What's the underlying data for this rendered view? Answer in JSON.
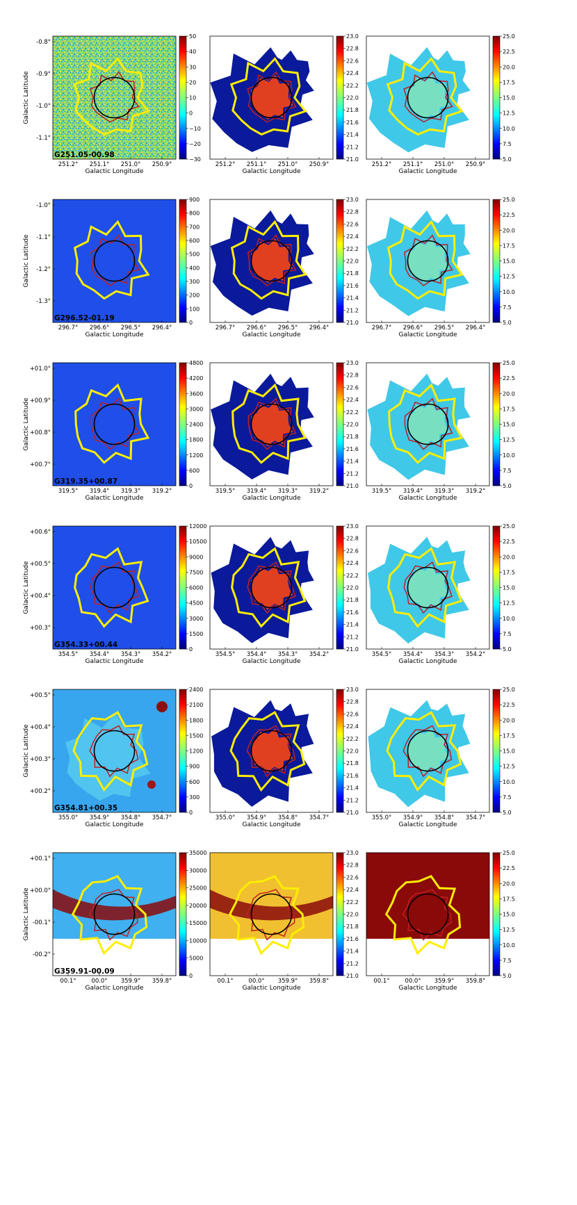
{
  "figure": {
    "background": "#ffffff"
  },
  "common": {
    "xlabel": "Galactic Longitude",
    "ylabel": "Galactic Latitude",
    "column_colorbars": [
      null,
      {
        "ticks": [
          "23.0",
          "22.8",
          "22.6",
          "22.4",
          "22.2",
          "22.0",
          "21.8",
          "21.6",
          "21.4",
          "21.2",
          "21.0"
        ]
      },
      {
        "ticks": [
          "25.0",
          "22.5",
          "20.0",
          "17.5",
          "15.0",
          "12.5",
          "10.0",
          "7.5",
          "5.0"
        ]
      }
    ]
  },
  "chart_data": [
    {
      "type": "heatmap",
      "label": "G251.05-00.98",
      "xticks": [
        "251.2°",
        "251.1°",
        "251.0°",
        "250.9°"
      ],
      "yticks": [
        "-0.8°",
        "-0.9°",
        "-1.0°",
        "-1.1°"
      ],
      "colorbar1_ticks": [
        "50",
        "40",
        "30",
        "20",
        "10",
        "0",
        "−10",
        "−20",
        "−30"
      ],
      "maps": [
        "noise",
        "blob",
        "blob"
      ]
    },
    {
      "type": "heatmap",
      "label": "G296.52-01.19",
      "xticks": [
        "296.7°",
        "296.6°",
        "296.5°",
        "296.4°"
      ],
      "yticks": [
        "-1.0°",
        "-1.1°",
        "-1.2°",
        "-1.3°"
      ],
      "colorbar1_ticks": [
        "900",
        "800",
        "700",
        "600",
        "500",
        "400",
        "300",
        "200",
        "100",
        "0"
      ],
      "maps": [
        "smooth",
        "blob",
        "blob"
      ]
    },
    {
      "type": "heatmap",
      "label": "G319.35+00.87",
      "xticks": [
        "319.5°",
        "319.4°",
        "319.3°",
        "319.2°"
      ],
      "yticks": [
        "+01.0°",
        "+00.9°",
        "+00.8°",
        "+00.7°"
      ],
      "colorbar1_ticks": [
        "4800",
        "4200",
        "3600",
        "3000",
        "2400",
        "1800",
        "1200",
        "600",
        "0"
      ],
      "maps": [
        "smooth",
        "blob",
        "blob"
      ]
    },
    {
      "type": "heatmap",
      "label": "G354.33+00.44",
      "xticks": [
        "354.5°",
        "354.4°",
        "354.3°",
        "354.2°"
      ],
      "yticks": [
        "+00.6°",
        "+00.5°",
        "+00.4°",
        "+00.3°"
      ],
      "colorbar1_ticks": [
        "12000",
        "10500",
        "9000",
        "7500",
        "6000",
        "4500",
        "3000",
        "1500",
        "0"
      ],
      "maps": [
        "smooth",
        "blob",
        "blob"
      ]
    },
    {
      "type": "heatmap",
      "label": "G354.81+00.35",
      "xticks": [
        "355.0°",
        "354.9°",
        "354.8°",
        "354.7°"
      ],
      "yticks": [
        "+00.5°",
        "+00.4°",
        "+00.3°",
        "+00.2°"
      ],
      "colorbar1_ticks": [
        "2400",
        "2100",
        "1800",
        "1500",
        "1200",
        "900",
        "600",
        "300",
        "0"
      ],
      "maps": [
        "smooth",
        "blob",
        "blob"
      ]
    },
    {
      "type": "heatmap",
      "label": "G359.91-00.09",
      "xticks": [
        "00.1°",
        "00.0°",
        "359.9°",
        "359.8°"
      ],
      "yticks": [
        "+00.1°",
        "+00.0°",
        "-00.1°",
        "-00.2°"
      ],
      "colorbar1_ticks": [
        "35000",
        "30000",
        "25000",
        "20000",
        "15000",
        "10000",
        "5000",
        "0"
      ],
      "maps": [
        "band",
        "band",
        "band"
      ]
    }
  ]
}
